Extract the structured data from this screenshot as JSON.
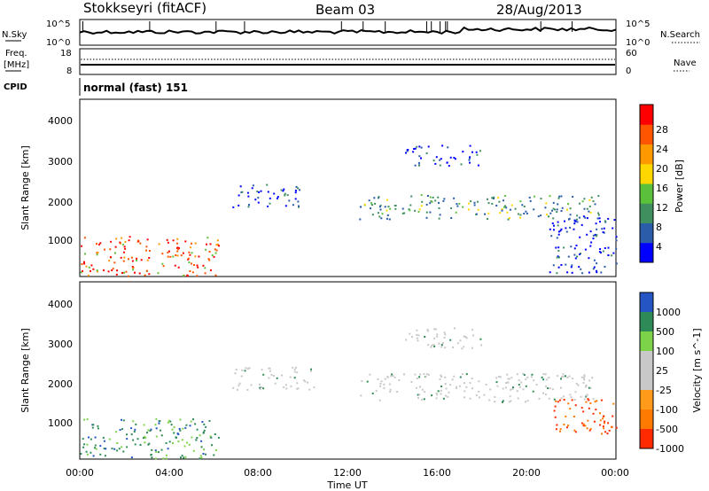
{
  "header": {
    "station": "Stokkseyri (fitACF)",
    "beam": "Beam 03",
    "date": "28/Aug/2013"
  },
  "side_labels": {
    "nsky": "N.Sky",
    "freq": "Freq.",
    "freq_unit": "[MHz]",
    "cpid": "CPID",
    "nsearch": "N.Search",
    "nave": "Nave"
  },
  "cpid_text": "normal (fast) 151",
  "colors": {
    "power": [
      "#0000ff",
      "#2a5caa",
      "#3f8f5f",
      "#59c23a",
      "#ffd700",
      "#ff9900",
      "#ff5500",
      "#ff0000"
    ],
    "velocity": [
      "#2455c3",
      "#2e8b57",
      "#7cd34a",
      "#c8c8c8",
      "#c8c8c8",
      "#ff9a1a",
      "#ff7a00",
      "#ff2a00"
    ],
    "gray": "#c8c8c8"
  },
  "chart_data": [
    {
      "type": "line",
      "name": "N.Sky",
      "y_ticks": [
        "10^5",
        "10^0"
      ],
      "y_ticks_right": [
        "10^5",
        "10^0"
      ]
    },
    {
      "type": "line",
      "name": "Freq",
      "y_ticks": [
        "18",
        "8"
      ],
      "y_ticks_right": [
        "60",
        "0"
      ]
    },
    {
      "type": "heatmap",
      "name": "Power",
      "xlabel": "",
      "ylabel": "Slant Range [km]",
      "ylim": [
        200,
        4500
      ],
      "xlim": [
        0,
        24
      ],
      "x_ticks": [
        "00:00",
        "04:00",
        "08:00",
        "12:00",
        "16:00",
        "20:00",
        "00:00"
      ],
      "y_ticks": [
        "1000",
        "2000",
        "3000",
        "4000"
      ],
      "colorbar": {
        "label": "Power [dB]",
        "ticks": [
          "4",
          "8",
          "12",
          "16",
          "20",
          "24",
          "28"
        ]
      },
      "regions": [
        {
          "t0": 0.0,
          "t1": 6.2,
          "r0": 220,
          "r1": 1200,
          "level": "strong"
        },
        {
          "t0": 6.8,
          "t1": 10.0,
          "r0": 1900,
          "r1": 2450,
          "level": "weak"
        },
        {
          "t0": 12.5,
          "t1": 23.5,
          "r0": 1600,
          "r1": 2200,
          "level": "medium"
        },
        {
          "t0": 14.5,
          "t1": 18.0,
          "r0": 2900,
          "r1": 3400,
          "level": "weak"
        },
        {
          "t0": 21.0,
          "t1": 24.0,
          "r0": 300,
          "r1": 1700,
          "level": "weak"
        }
      ]
    },
    {
      "type": "heatmap",
      "name": "Velocity",
      "xlabel": "Time UT",
      "ylabel": "Slant Range [km]",
      "ylim": [
        200,
        4500
      ],
      "xlim": [
        0,
        24
      ],
      "x_ticks": [
        "00:00",
        "04:00",
        "08:00",
        "12:00",
        "16:00",
        "20:00",
        "00:00"
      ],
      "y_ticks": [
        "1000",
        "2000",
        "3000",
        "4000"
      ],
      "colorbar": {
        "label": "Velocity [m s^-1]",
        "ticks": [
          "1000",
          "500",
          "100",
          "25",
          "-25",
          "-100",
          "-500",
          "-1000"
        ]
      },
      "regions": [
        {
          "t0": 0.0,
          "t1": 6.2,
          "r0": 220,
          "r1": 1200,
          "level": "green"
        },
        {
          "t0": 6.8,
          "t1": 10.5,
          "r0": 1900,
          "r1": 2450,
          "level": "gray"
        },
        {
          "t0": 12.5,
          "t1": 23.0,
          "r0": 1600,
          "r1": 2300,
          "level": "gray"
        },
        {
          "t0": 14.5,
          "t1": 18.0,
          "r0": 2900,
          "r1": 3400,
          "level": "gray"
        },
        {
          "t0": 21.2,
          "t1": 24.0,
          "r0": 800,
          "r1": 1700,
          "level": "red"
        }
      ]
    }
  ]
}
